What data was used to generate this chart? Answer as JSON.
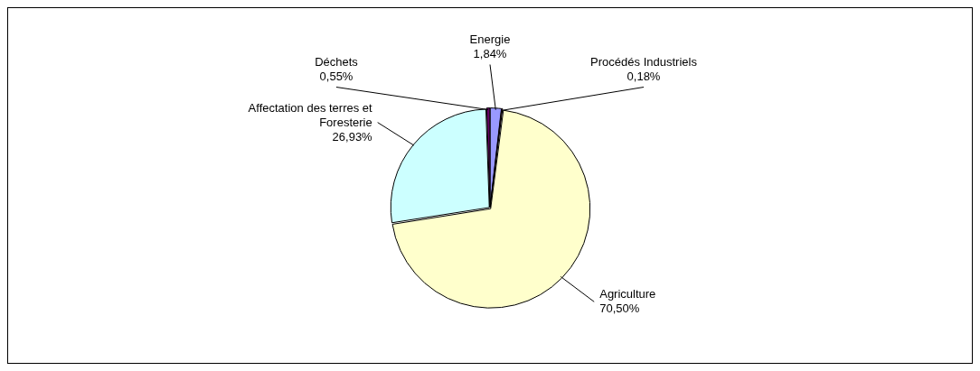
{
  "chart_data": {
    "type": "pie",
    "categories": [
      "Energie",
      "Procédés Industriels",
      "Agriculture",
      "Affectation des terres et Foresterie",
      "Déchets"
    ],
    "values": [
      1.84,
      0.18,
      70.5,
      26.93,
      0.55
    ],
    "colors": [
      "#9999ff",
      "#993366",
      "#ffffcc",
      "#ccffff",
      "#660066"
    ],
    "value_labels": [
      "1,84%",
      "0,18%",
      "70,50%",
      "26,93%",
      "0,55%"
    ],
    "legend": false
  }
}
